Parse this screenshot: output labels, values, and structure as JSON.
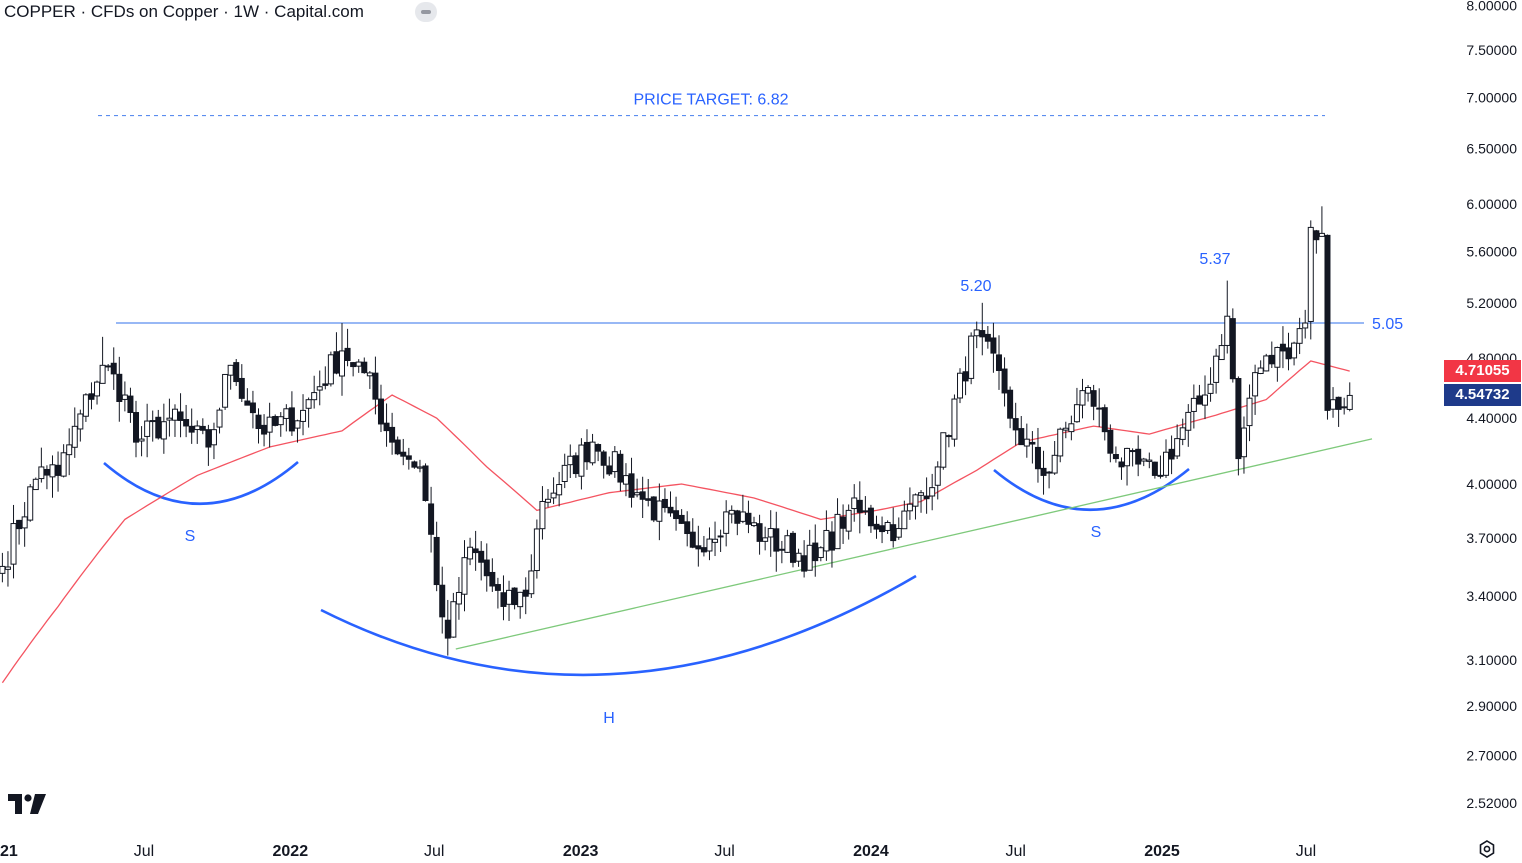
{
  "header": {
    "title": "COPPER · CFDs on Copper · 1W · Capital.com"
  },
  "price_tags": {
    "ma": "4.71055",
    "last": "4.54732",
    "ma_color": "#f23645",
    "last_color": "#1e3a8a"
  },
  "colors": {
    "candle": "#131722",
    "ma": "#f23645",
    "resistance": "#5b8def",
    "trendline": "#7ec97b",
    "annotation": "#2962ff",
    "arc": "#2962ff"
  },
  "annotations": {
    "target": "PRICE TARGET: 6.82",
    "peak1": "5.20",
    "peak2": "5.37",
    "neckline": "5.05",
    "left_shoulder": "S",
    "head": "H",
    "right_shoulder": "S"
  },
  "icons": {
    "logo": "tradingview-logo-icon",
    "settings": "settings-gear-icon",
    "menu": "collapse-pill-icon"
  },
  "chart_data": {
    "type": "candlestick",
    "title": "COPPER · CFDs on Copper · 1W · Capital.com",
    "y_scale": "log",
    "ylim": [
      2.45,
      8.05
    ],
    "y_ticks": [
      "8.00000",
      "7.50000",
      "7.00000",
      "6.50000",
      "6.00000",
      "5.60000",
      "5.20000",
      "4.80000",
      "4.40000",
      "4.00000",
      "3.70000",
      "3.40000",
      "3.10000",
      "2.90000",
      "2.70000",
      "2.52000"
    ],
    "x_ticks": [
      {
        "label": "21",
        "date": "2021-01-01",
        "major": true
      },
      {
        "label": "Jul",
        "date": "2021-07-01",
        "major": false
      },
      {
        "label": "2022",
        "date": "2022-01-01",
        "major": true
      },
      {
        "label": "Jul",
        "date": "2022-07-01",
        "major": false
      },
      {
        "label": "2023",
        "date": "2023-01-01",
        "major": true
      },
      {
        "label": "Jul",
        "date": "2023-07-01",
        "major": false
      },
      {
        "label": "2024",
        "date": "2024-01-01",
        "major": true
      },
      {
        "label": "Jul",
        "date": "2024-07-01",
        "major": false
      },
      {
        "label": "2025",
        "date": "2025-01-01",
        "major": true
      },
      {
        "label": "Jul",
        "date": "2025-07-01",
        "major": false
      }
    ],
    "close_anchors": [
      [
        "2021-01-04",
        3.55
      ],
      [
        "2021-02-22",
        4.1
      ],
      [
        "2021-03-15",
        4.05
      ],
      [
        "2021-05-10",
        4.75
      ],
      [
        "2021-06-07",
        4.55
      ],
      [
        "2021-06-21",
        4.25
      ],
      [
        "2021-08-02",
        4.4
      ],
      [
        "2021-09-20",
        4.22
      ],
      [
        "2021-10-18",
        4.75
      ],
      [
        "2021-11-29",
        4.3
      ],
      [
        "2022-01-17",
        4.45
      ],
      [
        "2022-03-07",
        4.85
      ],
      [
        "2022-04-04",
        4.7
      ],
      [
        "2022-05-09",
        4.25
      ],
      [
        "2022-06-13",
        4.1
      ],
      [
        "2022-07-11",
        3.3
      ],
      [
        "2022-07-18",
        3.2
      ],
      [
        "2022-08-15",
        3.65
      ],
      [
        "2022-09-26",
        3.35
      ],
      [
        "2022-10-24",
        3.4
      ],
      [
        "2022-11-14",
        3.9
      ],
      [
        "2023-01-16",
        4.25
      ],
      [
        "2023-03-13",
        3.95
      ],
      [
        "2023-05-22",
        3.65
      ],
      [
        "2023-07-10",
        3.85
      ],
      [
        "2023-08-21",
        3.7
      ],
      [
        "2023-10-23",
        3.58
      ],
      [
        "2023-12-04",
        3.85
      ],
      [
        "2024-02-05",
        3.75
      ],
      [
        "2024-03-25",
        4.1
      ],
      [
        "2024-05-13",
        5.0
      ],
      [
        "2024-05-20",
        4.95
      ],
      [
        "2024-06-24",
        4.4
      ],
      [
        "2024-08-05",
        4.05
      ],
      [
        "2024-09-30",
        4.6
      ],
      [
        "2024-11-04",
        4.15
      ],
      [
        "2024-12-23",
        4.05
      ],
      [
        "2025-02-24",
        4.55
      ],
      [
        "2025-03-24",
        5.1
      ],
      [
        "2025-04-07",
        4.15
      ],
      [
        "2025-04-28",
        4.7
      ],
      [
        "2025-06-02",
        4.85
      ],
      [
        "2025-06-30",
        5.05
      ],
      [
        "2025-07-07",
        5.8
      ],
      [
        "2025-07-21",
        5.75
      ],
      [
        "2025-07-28",
        4.45
      ],
      [
        "2025-08-25",
        4.54732
      ]
    ],
    "moving_average": {
      "last_value": 4.71055,
      "anchors": [
        [
          "2021-01-04",
          3.0
        ],
        [
          "2021-03-15",
          3.35
        ],
        [
          "2021-06-07",
          3.8
        ],
        [
          "2021-09-06",
          4.05
        ],
        [
          "2021-12-06",
          4.22
        ],
        [
          "2022-03-07",
          4.32
        ],
        [
          "2022-05-09",
          4.55
        ],
        [
          "2022-07-04",
          4.4
        ],
        [
          "2022-09-05",
          4.1
        ],
        [
          "2022-11-07",
          3.85
        ],
        [
          "2023-02-06",
          3.95
        ],
        [
          "2023-05-08",
          4.0
        ],
        [
          "2023-08-07",
          3.92
        ],
        [
          "2023-10-30",
          3.8
        ],
        [
          "2024-01-08",
          3.85
        ],
        [
          "2024-03-04",
          3.9
        ],
        [
          "2024-05-13",
          4.08
        ],
        [
          "2024-07-08",
          4.25
        ],
        [
          "2024-10-07",
          4.35
        ],
        [
          "2024-12-16",
          4.3
        ],
        [
          "2025-03-10",
          4.42
        ],
        [
          "2025-05-12",
          4.52
        ],
        [
          "2025-07-07",
          4.78
        ],
        [
          "2025-08-25",
          4.71055
        ]
      ]
    },
    "levels": {
      "price_target": 6.82,
      "neckline": 5.05,
      "left_shoulder_peak": 5.2,
      "right_peak": 5.37
    },
    "trendline": {
      "from": [
        "2022-07-18",
        3.15
      ],
      "to": [
        "2025-09-22",
        4.27
      ]
    },
    "pattern": "inverse head and shoulders",
    "grid": false,
    "legend": "none"
  }
}
